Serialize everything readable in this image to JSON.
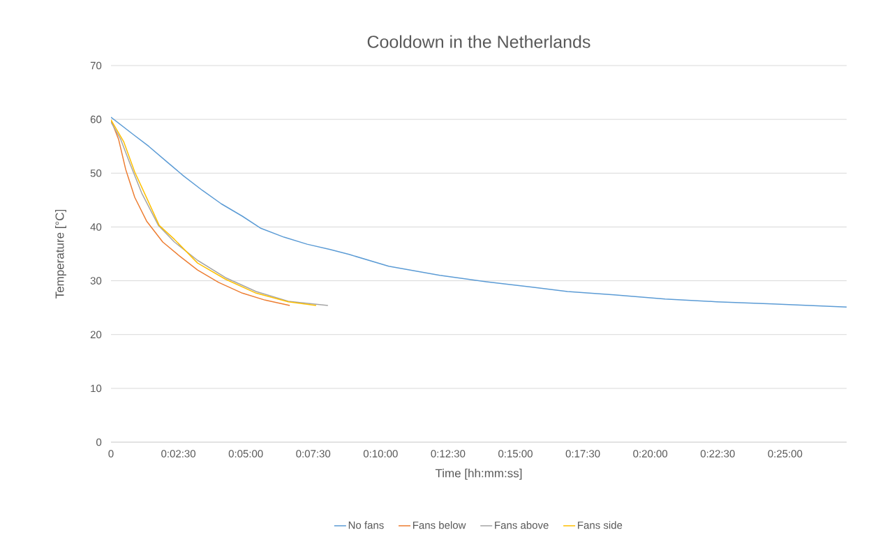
{
  "chart_data": {
    "type": "line",
    "title": "Cooldown in the Netherlands",
    "xlabel": "Time [hh:mm:ss]",
    "ylabel": "Temperature [°C]",
    "xlim": [
      0,
      0.4547
    ],
    "ylim": [
      0,
      70
    ],
    "xticks": [
      0,
      {
        "value": 0.041667,
        "label": "0:02:30"
      },
      {
        "value": 0.083333,
        "label": "0:05:00"
      },
      {
        "value": 0.125,
        "label": "0:07:30"
      },
      {
        "value": 0.166667,
        "label": "0:10:00"
      },
      {
        "value": 0.208333,
        "label": "0:12:30"
      },
      {
        "value": 0.25,
        "label": "0:15:00"
      },
      {
        "value": 0.291667,
        "label": "0:17:30"
      },
      {
        "value": 0.333333,
        "label": "0:20:00"
      },
      {
        "value": 0.375,
        "label": "0:22:30"
      },
      {
        "value": 0.416667,
        "label": "0:25:00"
      }
    ],
    "yticks": [
      0,
      10,
      20,
      30,
      40,
      50,
      60,
      70
    ],
    "grid": "y",
    "legend": "bottom",
    "marker": "none",
    "line_style": "solid",
    "series": [
      {
        "name": "No fans",
        "color": "#5b9bd5",
        "x": [
          0,
          0.0133,
          0.0233,
          0.035,
          0.0448,
          0.0565,
          0.0682,
          0.0812,
          0.0923,
          0.107,
          0.1212,
          0.1355,
          0.1472,
          0.1717,
          0.2032,
          0.232,
          0.2605,
          0.2822,
          0.311,
          0.3425,
          0.3743,
          0.4088,
          0.4547
        ],
        "values": [
          60.4,
          57.3,
          55.0,
          52.0,
          49.5,
          46.8,
          44.3,
          42.0,
          39.8,
          38.1,
          36.8,
          35.8,
          34.9,
          32.7,
          31.0,
          29.8,
          28.8,
          28.0,
          27.4,
          26.6,
          26.1,
          25.7,
          25.1
        ]
      },
      {
        "name": "Fans below",
        "color": "#ed7d31",
        "x": [
          0,
          0.0047,
          0.0091,
          0.0147,
          0.022,
          0.032,
          0.0424,
          0.0535,
          0.0665,
          0.0812,
          0.0953,
          0.1105
        ],
        "values": [
          59.9,
          56.3,
          50.7,
          45.5,
          41.1,
          37.2,
          34.6,
          32.0,
          29.7,
          27.7,
          26.4,
          25.4
        ]
      },
      {
        "name": "Fans above",
        "color": "#a5a5a5",
        "x": [
          0,
          0.006,
          0.0121,
          0.019,
          0.0293,
          0.0392,
          0.0535,
          0.0707,
          0.0897,
          0.1096,
          0.1341
        ],
        "values": [
          59.5,
          56.3,
          51.5,
          46.3,
          40.3,
          37.2,
          33.8,
          30.6,
          28.0,
          26.2,
          25.4
        ]
      },
      {
        "name": "Fans side",
        "color": "#ffc000",
        "x": [
          0,
          0.0078,
          0.0147,
          0.0207,
          0.0298,
          0.0392,
          0.0535,
          0.0707,
          0.0897,
          0.1096,
          0.1268
        ],
        "values": [
          59.9,
          55.9,
          50.2,
          46.3,
          40.3,
          37.7,
          33.3,
          30.3,
          27.7,
          26.1,
          25.4
        ]
      }
    ]
  }
}
